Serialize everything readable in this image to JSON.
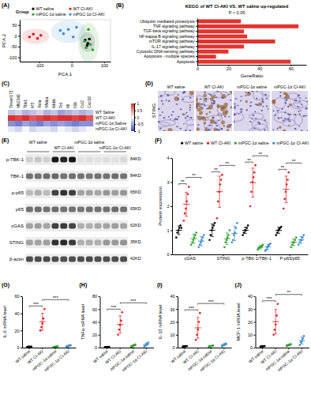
{
  "chart_data": [
    {
      "type": "scatter",
      "label": "(A)",
      "x_label": "PCA.1",
      "y_label": "PCA.2",
      "legend_title": "Group",
      "xlim": [
        -160,
        120
      ],
      "xticks": [
        -100,
        0,
        100
      ],
      "ylim": [
        -120,
        75
      ],
      "yticks": [
        -100,
        -50,
        0,
        50
      ],
      "series": [
        {
          "name": "WT saline",
          "color": "#000000",
          "x": [
            42,
            50,
            55,
            48
          ],
          "values": [
            -20,
            -35,
            -15,
            -45
          ]
        },
        {
          "name": "WT CI-AKI",
          "color": "#e41a1c",
          "x": [
            -130,
            -118,
            -105,
            -95
          ],
          "values": [
            -5,
            8,
            -12,
            2
          ]
        },
        {
          "name": "mPGC-1α saline",
          "color": "#2ca02c",
          "x": [
            45,
            58,
            65,
            52,
            40
          ],
          "values": [
            -55,
            -40,
            -65,
            30,
            -25
          ]
        },
        {
          "name": "mPGC-1α CI-AKI",
          "color": "#3b8bd4",
          "x": [
            -25,
            -10,
            5,
            15,
            -35
          ],
          "values": [
            10,
            30,
            -5,
            40,
            25
          ]
        }
      ]
    },
    {
      "type": "bar",
      "orientation": "horizontal",
      "label": "(B)",
      "title": "KEGG of WT CI-AKI VS. WT saline up-regulated",
      "subtitle": "P < 0.05",
      "x_label": "GeneRatio",
      "categories": [
        "Ubiquitin mediated proteolysis",
        "TNF signaling pathway",
        "TGF-beta signaling pathway",
        "NF-kappa B signaling pathway",
        "mTOR signaling pathway",
        "IL-17 signaling pathway",
        "Cytosolic DNA-sensing pathway",
        "Apoptosis - multiple species",
        "Apoptosis"
      ],
      "values": [
        28,
        65,
        30,
        32,
        50,
        30,
        20,
        12,
        60
      ],
      "color": "#e3342f",
      "xlim": [
        0,
        70
      ],
      "xticks": [
        0,
        20,
        40,
        60
      ]
    },
    {
      "type": "heatmap",
      "label": "(C)",
      "columns": [
        "Tmem173",
        "Mb21d1",
        "Tbk1",
        "Irf3",
        "Rela",
        "Nfkbia",
        "Ikbkb",
        "Tnf",
        "Il6",
        "Il1b",
        "Ccl2",
        "Cxcl10"
      ],
      "rows": [
        "WT Saline",
        "WT CI-AKI",
        "mPGC-1α Saline",
        "mPGC-1α CI-AKI"
      ],
      "cells": [
        [
          -0.3,
          -0.2,
          -0.4,
          -0.3,
          -0.2,
          -0.4,
          -0.3,
          -0.5,
          -0.4,
          -0.3,
          -0.4,
          -0.3
        ],
        [
          1,
          0.9,
          1,
          0.8,
          0.9,
          1,
          0.9,
          1,
          1,
          0.9,
          1,
          0.8
        ],
        [
          -0.6,
          -0.7,
          -0.5,
          -0.6,
          -0.7,
          -0.5,
          -0.6,
          -0.5,
          -0.6,
          -0.7,
          -0.6,
          -0.6
        ],
        [
          -0.1,
          -0.2,
          0,
          -0.2,
          -0.1,
          -0.1,
          -0.2,
          0,
          -0.1,
          -0.2,
          -0.1,
          0
        ]
      ],
      "colorbar_range": [
        -1,
        1
      ],
      "colorbar_ticks": [
        -1,
        -0.5,
        0,
        0.5,
        1
      ]
    },
    {
      "type": "image",
      "label": "(D)",
      "y_label": "STING",
      "panels": [
        "WT saline",
        "WT CI-AKI",
        "mPGC-1α saline",
        "mPGC-1α CI-AKI"
      ]
    },
    {
      "type": "blot",
      "label": "(E)",
      "groups": [
        "WT saline",
        "WT CI-AKI",
        "mPGC-1α saline",
        "mPGC-1α CI-AKI"
      ],
      "rows": [
        {
          "name": "p-TBK-1",
          "size": "84KD",
          "values": [
            0.2,
            0.25,
            0.2,
            0.95,
            0.9,
            0.95,
            0.1,
            0.12,
            0.1,
            0.12,
            0.1,
            0.15
          ]
        },
        {
          "name": "TBK-1",
          "size": "84KD",
          "values": [
            0.6,
            0.6,
            0.62,
            0.65,
            0.6,
            0.62,
            0.6,
            0.58,
            0.6,
            0.6,
            0.62,
            0.6
          ]
        },
        {
          "name": "p-p65",
          "size": "65KD",
          "values": [
            0.3,
            0.35,
            0.3,
            0.8,
            0.85,
            0.8,
            0.4,
            0.4,
            0.38,
            0.45,
            0.42,
            0.45
          ]
        },
        {
          "name": "p65",
          "size": "65KD",
          "values": [
            0.6,
            0.62,
            0.6,
            0.62,
            0.6,
            0.6,
            0.58,
            0.6,
            0.6,
            0.6,
            0.62,
            0.6
          ]
        },
        {
          "name": "cGAS",
          "size": "62KD",
          "values": [
            0.4,
            0.42,
            0.4,
            0.8,
            0.82,
            0.78,
            0.35,
            0.35,
            0.38,
            0.4,
            0.42,
            0.4
          ]
        },
        {
          "name": "STING",
          "size": "35KD",
          "values": [
            0.4,
            0.4,
            0.42,
            0.85,
            0.88,
            0.82,
            0.35,
            0.36,
            0.35,
            0.45,
            0.44,
            0.46
          ]
        },
        {
          "name": "β-actin",
          "size": "42KD",
          "values": [
            0.75,
            0.75,
            0.76,
            0.75,
            0.74,
            0.75,
            0.75,
            0.76,
            0.75,
            0.74,
            0.75,
            0.75
          ]
        }
      ]
    },
    {
      "type": "dot",
      "label": "(F)",
      "y_label": "Protein expression",
      "categories": [
        "cGAS",
        "STING",
        "p-TBK-1/TBK-1",
        "P-p65/p65"
      ],
      "ylim": [
        0,
        4
      ],
      "yticks": [
        0,
        1,
        2,
        3,
        4
      ],
      "series": [
        {
          "name": "WT saline",
          "color": "#000000",
          "values": [
            1.0,
            1.0,
            1.0,
            1.0
          ],
          "error": [
            0.18,
            0.26,
            0.13,
            0.13
          ],
          "points": [
            [
              0.7,
              0.9,
              1.0,
              1.1,
              1.2,
              1.1
            ],
            [
              0.6,
              0.8,
              1.0,
              1.1,
              1.2,
              1.3
            ],
            [
              0.8,
              0.9,
              1.0,
              1.0,
              1.1,
              1.2
            ],
            [
              0.8,
              0.9,
              1.0,
              1.05,
              1.1,
              1.15
            ]
          ]
        },
        {
          "name": "WT CI-AKI",
          "color": "#e41a1c",
          "values": [
            2.08,
            2.6,
            2.98,
            2.7
          ],
          "error": [
            0.5,
            0.65,
            0.6,
            0.55
          ],
          "points": [
            [
              1.4,
              1.7,
              1.9,
              2.2,
              2.5,
              2.8
            ],
            [
              1.5,
              2.2,
              2.6,
              2.9,
              3.1,
              3.3
            ],
            [
              2.0,
              2.6,
              3.0,
              3.2,
              3.4,
              3.7
            ],
            [
              1.9,
              2.3,
              2.6,
              2.9,
              3.1,
              3.4
            ]
          ]
        },
        {
          "name": "mPGC-1α saline",
          "color": "#2ca02c",
          "values": [
            0.65,
            0.65,
            0.3,
            0.5
          ],
          "error": [
            0.19,
            0.24,
            0.07,
            0.14
          ],
          "points": [
            [
              0.4,
              0.5,
              0.6,
              0.7,
              0.8,
              0.9
            ],
            [
              0.3,
              0.5,
              0.6,
              0.7,
              0.8,
              1.0
            ],
            [
              0.2,
              0.25,
              0.3,
              0.3,
              0.35,
              0.4
            ],
            [
              0.3,
              0.4,
              0.5,
              0.5,
              0.6,
              0.7
            ]
          ]
        },
        {
          "name": "mPGC-1α CI-AKI",
          "color": "#3b8bd4",
          "values": [
            0.55,
            0.87,
            0.31,
            0.6
          ],
          "error": [
            0.19,
            0.3,
            0.11,
            0.14
          ],
          "points": [
            [
              0.3,
              0.4,
              0.5,
              0.6,
              0.7,
              0.8
            ],
            [
              0.5,
              0.6,
              0.8,
              0.9,
              1.1,
              1.3
            ],
            [
              0.15,
              0.2,
              0.3,
              0.35,
              0.4,
              0.45
            ],
            [
              0.4,
              0.5,
              0.6,
              0.6,
              0.7,
              0.8
            ]
          ]
        }
      ],
      "annotations": [
        {
          "text": "**",
          "category": 0,
          "between": [
            0,
            1
          ]
        },
        {
          "text": "**",
          "category": 0,
          "between": [
            1,
            3
          ]
        },
        {
          "text": "**",
          "category": 1,
          "between": [
            0,
            1
          ]
        },
        {
          "text": "**",
          "category": 1,
          "between": [
            1,
            3
          ]
        },
        {
          "text": "**",
          "category": 2,
          "between": [
            0,
            1
          ]
        },
        {
          "text": "**",
          "category": 2,
          "between": [
            1,
            3
          ]
        },
        {
          "text": "**",
          "category": 3,
          "between": [
            0,
            1
          ]
        },
        {
          "text": "**",
          "category": 3,
          "between": [
            1,
            3
          ]
        }
      ]
    },
    {
      "type": "dot",
      "label": "(G)",
      "y_label": "IL-6 mRNA level",
      "categories": [
        "WT saline",
        "WT CI-AKI",
        "mPGC-1α saline",
        "mPGC-1α CI-AKI"
      ],
      "colors": [
        "#000000",
        "#e41a1c",
        "#2ca02c",
        "#3b8bd4"
      ],
      "ylim": [
        0,
        60
      ],
      "yticks": [
        0,
        20,
        40,
        60
      ],
      "values": [
        1.02,
        30.2,
        1.0,
        1.96
      ],
      "error": [
        0.15,
        9.8,
        0.39,
        0.86
      ],
      "points": [
        [
          0.8,
          1,
          1,
          1.1,
          1.2
        ],
        [
          20,
          24,
          28,
          34,
          45
        ],
        [
          0.5,
          0.8,
          1,
          1.2,
          1.5
        ],
        [
          0.8,
          1.5,
          2,
          2.5,
          3
        ]
      ],
      "annotations": [
        {
          "text": "***",
          "between": [
            0,
            1
          ]
        },
        {
          "text": "***",
          "between": [
            1,
            3
          ]
        }
      ]
    },
    {
      "type": "dot",
      "label": "(H)",
      "y_label": "TNFα mRNA level",
      "categories": [
        "WT saline",
        "WT CI-AKI",
        "mPGC-1α saline",
        "mPGC-1α CI-AKI"
      ],
      "colors": [
        "#000000",
        "#e41a1c",
        "#2ca02c",
        "#3b8bd4"
      ],
      "ylim": [
        0,
        80
      ],
      "yticks": [
        0,
        20,
        40,
        60,
        80
      ],
      "values": [
        1.02,
        36,
        3,
        4.8
      ],
      "error": [
        0.15,
        13.5,
        1.6,
        2.4
      ],
      "points": [
        [
          0.8,
          1,
          1,
          1.1,
          1.2
        ],
        [
          20,
          28,
          35,
          42,
          55
        ],
        [
          1,
          2,
          3,
          4,
          5
        ],
        [
          2,
          3,
          5,
          6,
          8
        ]
      ],
      "annotations": [
        {
          "text": "***",
          "between": [
            0,
            1
          ]
        },
        {
          "text": "***",
          "between": [
            1,
            3
          ]
        }
      ]
    },
    {
      "type": "dot",
      "label": "(I)",
      "y_label": "IL-1β mRNA level",
      "categories": [
        "WT saline",
        "WT CI-AKI",
        "mPGC-1α saline",
        "mPGC-1α CI-AKI"
      ],
      "colors": [
        "#000000",
        "#e41a1c",
        "#2ca02c",
        "#3b8bd4"
      ],
      "ylim": [
        0,
        40
      ],
      "yticks": [
        0,
        10,
        20,
        30,
        40
      ],
      "values": [
        1.02,
        15.4,
        1.2,
        2.2
      ],
      "error": [
        0.15,
        8.1,
        0.4,
        0.9
      ],
      "points": [
        [
          0.8,
          1,
          1,
          1.1,
          1.2
        ],
        [
          6,
          10,
          14,
          20,
          27
        ],
        [
          0.7,
          1,
          1.2,
          1.4,
          1.7
        ],
        [
          1,
          1.8,
          2.2,
          2.8,
          3.2
        ]
      ],
      "annotations": [
        {
          "text": "***",
          "between": [
            0,
            1
          ]
        },
        {
          "text": "***",
          "between": [
            1,
            3
          ]
        }
      ]
    },
    {
      "type": "dot",
      "label": "(J)",
      "y_label": "MCP-1 mRNA level",
      "categories": [
        "WT saline",
        "WT CI-AKI",
        "mPGC-1α saline",
        "mPGC-1α CI-AKI"
      ],
      "colors": [
        "#000000",
        "#e41a1c",
        "#2ca02c",
        "#3b8bd4"
      ],
      "ylim": [
        0,
        40
      ],
      "yticks": [
        0,
        10,
        20,
        30,
        40
      ],
      "values": [
        1.02,
        20.2,
        2.0,
        5.4
      ],
      "error": [
        0.15,
        9.5,
        0.7,
        2.7
      ],
      "points": [
        [
          0.8,
          1,
          1,
          1.1,
          1.2
        ],
        [
          10,
          14,
          18,
          25,
          34
        ],
        [
          1.2,
          1.6,
          2,
          2.4,
          2.8
        ],
        [
          2,
          4,
          5,
          7,
          9
        ]
      ],
      "annotations": [
        {
          "text": "***",
          "between": [
            0,
            1
          ]
        },
        {
          "text": "**",
          "between": [
            1,
            3
          ]
        }
      ]
    }
  ]
}
